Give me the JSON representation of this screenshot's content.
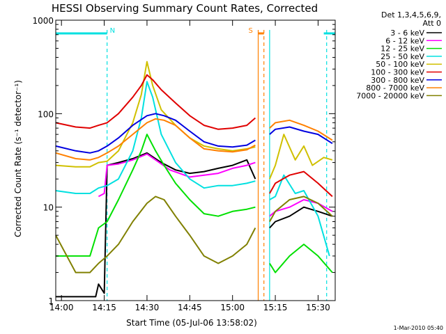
{
  "chart_data": {
    "type": "line",
    "title": "HESSI Observing Summary Count Rates, Corrected",
    "xlabel": "Start Time (05-Jul-06 13:58:02)",
    "ylabel": "Corrected Count Rate (s⁻¹ detector⁻¹)",
    "ylog": true,
    "xlim": [
      "13:58",
      "15:36"
    ],
    "ylim": [
      1,
      1000
    ],
    "xticks": [
      "14:00",
      "14:15",
      "14:30",
      "14:45",
      "15:00",
      "15:15",
      "15:30"
    ],
    "yticks": [
      "1",
      "10",
      "100",
      "1000"
    ],
    "legend_header": [
      "Det 1,3,4,5,6,9,",
      "Att 0"
    ],
    "legend_position": "right",
    "timestamp": "1-Mar-2010 05:40",
    "flags": [
      {
        "label": "N",
        "color": "#00e0e0",
        "segments": [
          [
            "13:58",
            "14:16"
          ],
          [
            "15:32",
            "15:36"
          ]
        ]
      },
      {
        "label": "S",
        "color": "#ff8000",
        "segments": [
          [
            "15:09",
            "15:11"
          ]
        ]
      }
    ],
    "gap": [
      "15:10",
      "15:13"
    ],
    "markers": [
      {
        "time": "14:16",
        "color": "#00e0e0",
        "style": "dashed"
      },
      {
        "time": "15:09",
        "color": "#ff8000",
        "style": "solid"
      },
      {
        "time": "15:11",
        "color": "#ff8000",
        "style": "dashed"
      },
      {
        "time": "15:13",
        "color": "#00e0e0",
        "style": "solid"
      },
      {
        "time": "15:33",
        "color": "#00e0e0",
        "style": "dashed"
      }
    ],
    "series": [
      {
        "name": "3 - 6 keV",
        "color": "#000000",
        "points": [
          [
            "13:58",
            1.1
          ],
          [
            "14:12",
            1.1
          ],
          [
            "14:13",
            1.5
          ],
          [
            "14:15",
            1.2
          ],
          [
            "14:16",
            28
          ],
          [
            "14:20",
            30
          ],
          [
            "14:25",
            33
          ],
          [
            "14:30",
            38
          ],
          [
            "14:35",
            30
          ],
          [
            "14:40",
            25
          ],
          [
            "14:45",
            23
          ],
          [
            "14:50",
            24
          ],
          [
            "14:55",
            26
          ],
          [
            "15:00",
            28
          ],
          [
            "15:05",
            32
          ],
          [
            "15:08",
            20
          ],
          [
            "15:13",
            6
          ],
          [
            "15:15",
            7
          ],
          [
            "15:20",
            8
          ],
          [
            "15:25",
            10
          ],
          [
            "15:30",
            9
          ],
          [
            "15:35",
            8
          ]
        ]
      },
      {
        "name": "6 - 12 keV",
        "color": "#ff00ff",
        "points": [
          [
            "14:13",
            13
          ],
          [
            "14:15",
            14
          ],
          [
            "14:16",
            28
          ],
          [
            "14:20",
            29
          ],
          [
            "14:25",
            32
          ],
          [
            "14:30",
            37
          ],
          [
            "14:33",
            32
          ],
          [
            "14:38",
            25
          ],
          [
            "14:45",
            21
          ],
          [
            "14:50",
            22
          ],
          [
            "14:55",
            23
          ],
          [
            "15:00",
            26
          ],
          [
            "15:05",
            28
          ],
          [
            "15:08",
            30
          ],
          [
            "15:13",
            8
          ],
          [
            "15:15",
            9
          ],
          [
            "15:20",
            10
          ],
          [
            "15:25",
            12
          ],
          [
            "15:30",
            11
          ],
          [
            "15:35",
            9
          ]
        ]
      },
      {
        "name": "12 - 25 keV",
        "color": "#00e000",
        "points": [
          [
            "13:58",
            3
          ],
          [
            "14:05",
            3
          ],
          [
            "14:10",
            3
          ],
          [
            "14:13",
            6
          ],
          [
            "14:16",
            7
          ],
          [
            "14:20",
            12
          ],
          [
            "14:25",
            25
          ],
          [
            "14:28",
            40
          ],
          [
            "14:30",
            60
          ],
          [
            "14:33",
            40
          ],
          [
            "14:36",
            28
          ],
          [
            "14:40",
            18
          ],
          [
            "14:45",
            12
          ],
          [
            "14:50",
            8.5
          ],
          [
            "14:55",
            8
          ],
          [
            "15:00",
            9
          ],
          [
            "15:05",
            9.5
          ],
          [
            "15:08",
            10
          ],
          [
            "15:13",
            2.5
          ],
          [
            "15:15",
            2
          ],
          [
            "15:20",
            3
          ],
          [
            "15:25",
            4
          ],
          [
            "15:30",
            3
          ],
          [
            "15:35",
            2
          ]
        ]
      },
      {
        "name": "25 - 50 keV",
        "color": "#00e0e0",
        "points": [
          [
            "13:58",
            15
          ],
          [
            "14:05",
            14
          ],
          [
            "14:10",
            14
          ],
          [
            "14:13",
            16
          ],
          [
            "14:16",
            17
          ],
          [
            "14:20",
            20
          ],
          [
            "14:25",
            40
          ],
          [
            "14:28",
            90
          ],
          [
            "14:30",
            220
          ],
          [
            "14:32",
            150
          ],
          [
            "14:35",
            60
          ],
          [
            "14:40",
            30
          ],
          [
            "14:45",
            20
          ],
          [
            "14:50",
            16
          ],
          [
            "14:55",
            17
          ],
          [
            "15:00",
            17
          ],
          [
            "15:05",
            18
          ],
          [
            "15:08",
            19
          ],
          [
            "15:13",
            12
          ],
          [
            "15:15",
            13
          ],
          [
            "15:18",
            22
          ],
          [
            "15:22",
            14
          ],
          [
            "15:25",
            15
          ],
          [
            "15:30",
            8
          ],
          [
            "15:34",
            3
          ]
        ]
      },
      {
        "name": "50 - 100 keV",
        "color": "#d0c000",
        "points": [
          [
            "13:58",
            28
          ],
          [
            "14:05",
            27
          ],
          [
            "14:10",
            27
          ],
          [
            "14:13",
            30
          ],
          [
            "14:16",
            31
          ],
          [
            "14:20",
            40
          ],
          [
            "14:25",
            80
          ],
          [
            "14:28",
            160
          ],
          [
            "14:30",
            360
          ],
          [
            "14:32",
            200
          ],
          [
            "14:35",
            110
          ],
          [
            "14:40",
            75
          ],
          [
            "14:45",
            55
          ],
          [
            "14:50",
            45
          ],
          [
            "14:55",
            42
          ],
          [
            "15:00",
            40
          ],
          [
            "15:05",
            42
          ],
          [
            "15:08",
            44
          ],
          [
            "15:13",
            20
          ],
          [
            "15:15",
            28
          ],
          [
            "15:18",
            60
          ],
          [
            "15:22",
            32
          ],
          [
            "15:25",
            45
          ],
          [
            "15:28",
            28
          ],
          [
            "15:32",
            34
          ],
          [
            "15:35",
            32
          ]
        ]
      },
      {
        "name": "100 - 300 keV",
        "color": "#e00000",
        "points": [
          [
            "13:58",
            80
          ],
          [
            "14:05",
            72
          ],
          [
            "14:10",
            70
          ],
          [
            "14:13",
            75
          ],
          [
            "14:16",
            80
          ],
          [
            "14:20",
            100
          ],
          [
            "14:25",
            150
          ],
          [
            "14:28",
            200
          ],
          [
            "14:30",
            260
          ],
          [
            "14:32",
            230
          ],
          [
            "14:35",
            180
          ],
          [
            "14:40",
            130
          ],
          [
            "14:45",
            95
          ],
          [
            "14:50",
            75
          ],
          [
            "14:55",
            68
          ],
          [
            "15:00",
            70
          ],
          [
            "15:05",
            75
          ],
          [
            "15:08",
            90
          ],
          [
            "15:13",
            14
          ],
          [
            "15:15",
            18
          ],
          [
            "15:20",
            22
          ],
          [
            "15:25",
            24
          ],
          [
            "15:30",
            18
          ],
          [
            "15:35",
            13
          ]
        ]
      },
      {
        "name": "300 - 800 keV",
        "color": "#0000e0",
        "points": [
          [
            "13:58",
            45
          ],
          [
            "14:05",
            40
          ],
          [
            "14:10",
            38
          ],
          [
            "14:13",
            40
          ],
          [
            "14:16",
            45
          ],
          [
            "14:20",
            55
          ],
          [
            "14:25",
            75
          ],
          [
            "14:30",
            95
          ],
          [
            "14:33",
            100
          ],
          [
            "14:36",
            95
          ],
          [
            "14:40",
            85
          ],
          [
            "14:45",
            65
          ],
          [
            "14:50",
            50
          ],
          [
            "14:55",
            45
          ],
          [
            "15:00",
            44
          ],
          [
            "15:05",
            46
          ],
          [
            "15:08",
            52
          ],
          [
            "15:13",
            60
          ],
          [
            "15:15",
            68
          ],
          [
            "15:20",
            72
          ],
          [
            "15:25",
            65
          ],
          [
            "15:30",
            60
          ],
          [
            "15:35",
            48
          ]
        ]
      },
      {
        "name": "800 - 7000 keV",
        "color": "#ff8000",
        "points": [
          [
            "13:58",
            38
          ],
          [
            "14:05",
            33
          ],
          [
            "14:10",
            32
          ],
          [
            "14:13",
            34
          ],
          [
            "14:16",
            38
          ],
          [
            "14:20",
            45
          ],
          [
            "14:25",
            60
          ],
          [
            "14:30",
            80
          ],
          [
            "14:33",
            88
          ],
          [
            "14:36",
            85
          ],
          [
            "14:40",
            75
          ],
          [
            "14:45",
            55
          ],
          [
            "14:50",
            42
          ],
          [
            "14:55",
            40
          ],
          [
            "15:00",
            39
          ],
          [
            "15:05",
            41
          ],
          [
            "15:08",
            46
          ],
          [
            "15:13",
            70
          ],
          [
            "15:15",
            80
          ],
          [
            "15:20",
            85
          ],
          [
            "15:25",
            75
          ],
          [
            "15:30",
            65
          ],
          [
            "15:35",
            52
          ]
        ]
      },
      {
        "name": "7000 - 20000 keV",
        "color": "#808000",
        "points": [
          [
            "13:58",
            5
          ],
          [
            "14:05",
            2
          ],
          [
            "14:10",
            2
          ],
          [
            "14:13",
            2.5
          ],
          [
            "14:16",
            3
          ],
          [
            "14:20",
            4
          ],
          [
            "14:25",
            7
          ],
          [
            "14:30",
            11
          ],
          [
            "14:33",
            13
          ],
          [
            "14:36",
            12
          ],
          [
            "14:40",
            8
          ],
          [
            "14:45",
            5
          ],
          [
            "14:50",
            3
          ],
          [
            "14:55",
            2.5
          ],
          [
            "15:00",
            3
          ],
          [
            "15:05",
            4
          ],
          [
            "15:08",
            6
          ],
          [
            "15:13",
            7
          ],
          [
            "15:15",
            9
          ],
          [
            "15:20",
            12
          ],
          [
            "15:25",
            13
          ],
          [
            "15:30",
            11
          ],
          [
            "15:35",
            8
          ]
        ]
      }
    ]
  }
}
